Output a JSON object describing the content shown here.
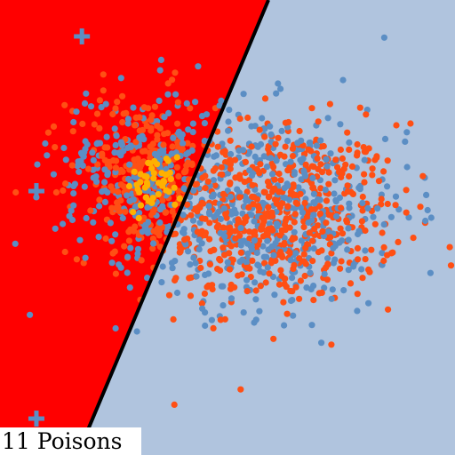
{
  "caption": "11 Poisons",
  "colors": {
    "region_a": "#ff0000",
    "region_b": "#b0c4de",
    "boundary": "#000000",
    "orange_points": "#ff4f14",
    "blue_points": "#5b8ec4",
    "yellow_points": "#ffb000",
    "poison_marker": "#5b8ec4"
  },
  "chart_data": {
    "type": "scatter",
    "title": "",
    "xlabel": "",
    "ylabel": "",
    "xlim": [
      0,
      1
    ],
    "ylim": [
      0,
      1
    ],
    "grid": false,
    "boundary_line": {
      "x0": 0.59,
      "y0": 1.0,
      "x1": 0.17,
      "y1": 0.0
    },
    "regions": [
      {
        "side": "left",
        "color": "#ff0000"
      },
      {
        "side": "right",
        "color": "#b0c4de"
      }
    ],
    "poison_markers": [
      {
        "x": 0.18,
        "y": 0.92
      },
      {
        "x": 0.08,
        "y": 0.58
      },
      {
        "x": 0.08,
        "y": 0.08
      }
    ],
    "series": [
      {
        "color": "#ff4f14",
        "clusters": [
          {
            "x": 0.6,
            "y": 0.53,
            "sx": 0.14,
            "sy": 0.1,
            "n": 640
          },
          {
            "x": 0.31,
            "y": 0.62,
            "sx": 0.08,
            "sy": 0.09,
            "n": 220
          }
        ]
      },
      {
        "color": "#5b8ec4",
        "clusters": [
          {
            "x": 0.58,
            "y": 0.54,
            "sx": 0.16,
            "sy": 0.11,
            "n": 520
          },
          {
            "x": 0.3,
            "y": 0.63,
            "sx": 0.09,
            "sy": 0.09,
            "n": 200
          }
        ]
      },
      {
        "color": "#ffb000",
        "clusters": [
          {
            "x": 0.34,
            "y": 0.6,
            "sx": 0.03,
            "sy": 0.03,
            "n": 45
          }
        ]
      }
    ]
  }
}
